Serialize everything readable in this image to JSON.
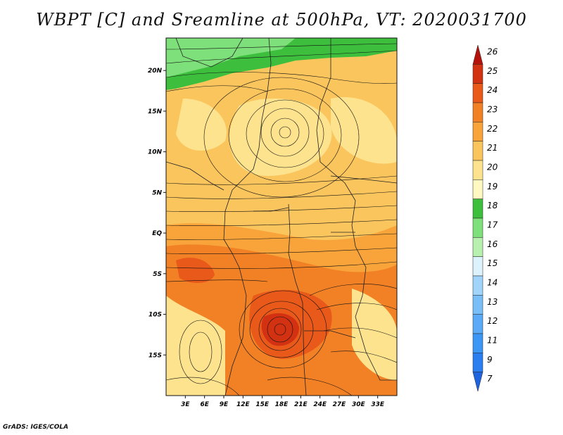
{
  "title": "WBPT [C] and Sreamline at 500hPa, VT: 2020031700",
  "credit": "GrADS: IGES/COLA",
  "map": {
    "lon_range": [
      0,
      36
    ],
    "lat_range": [
      -20,
      24
    ],
    "lat_labels": [
      "20N",
      "15N",
      "10N",
      "5N",
      "EQ",
      "5S",
      "10S",
      "15S"
    ],
    "lat_values": [
      20,
      15,
      10,
      5,
      0,
      -5,
      -10,
      -15
    ],
    "lon_labels": [
      "3E",
      "6E",
      "9E",
      "12E",
      "15E",
      "18E",
      "21E",
      "24E",
      "27E",
      "30E",
      "33E"
    ],
    "lon_values": [
      3,
      6,
      9,
      12,
      15,
      18,
      21,
      24,
      27,
      30,
      33
    ]
  },
  "colorbar": {
    "labels": [
      "7",
      "9",
      "11",
      "12",
      "13",
      "14",
      "15",
      "16",
      "17",
      "18",
      "19",
      "20",
      "21",
      "22",
      "23",
      "24",
      "25",
      "26"
    ],
    "colors": [
      "#1e64e0",
      "#2a7ef0",
      "#3c96f5",
      "#5aaaf8",
      "#78bffa",
      "#a0d4fb",
      "#dcf2fc",
      "#b8f0b0",
      "#7ee07a",
      "#3dbf3d",
      "#fff8c0",
      "#fde38e",
      "#fbc55e",
      "#f8a43a",
      "#f28126",
      "#e8591a",
      "#d23212",
      "#b5120b"
    ]
  }
}
